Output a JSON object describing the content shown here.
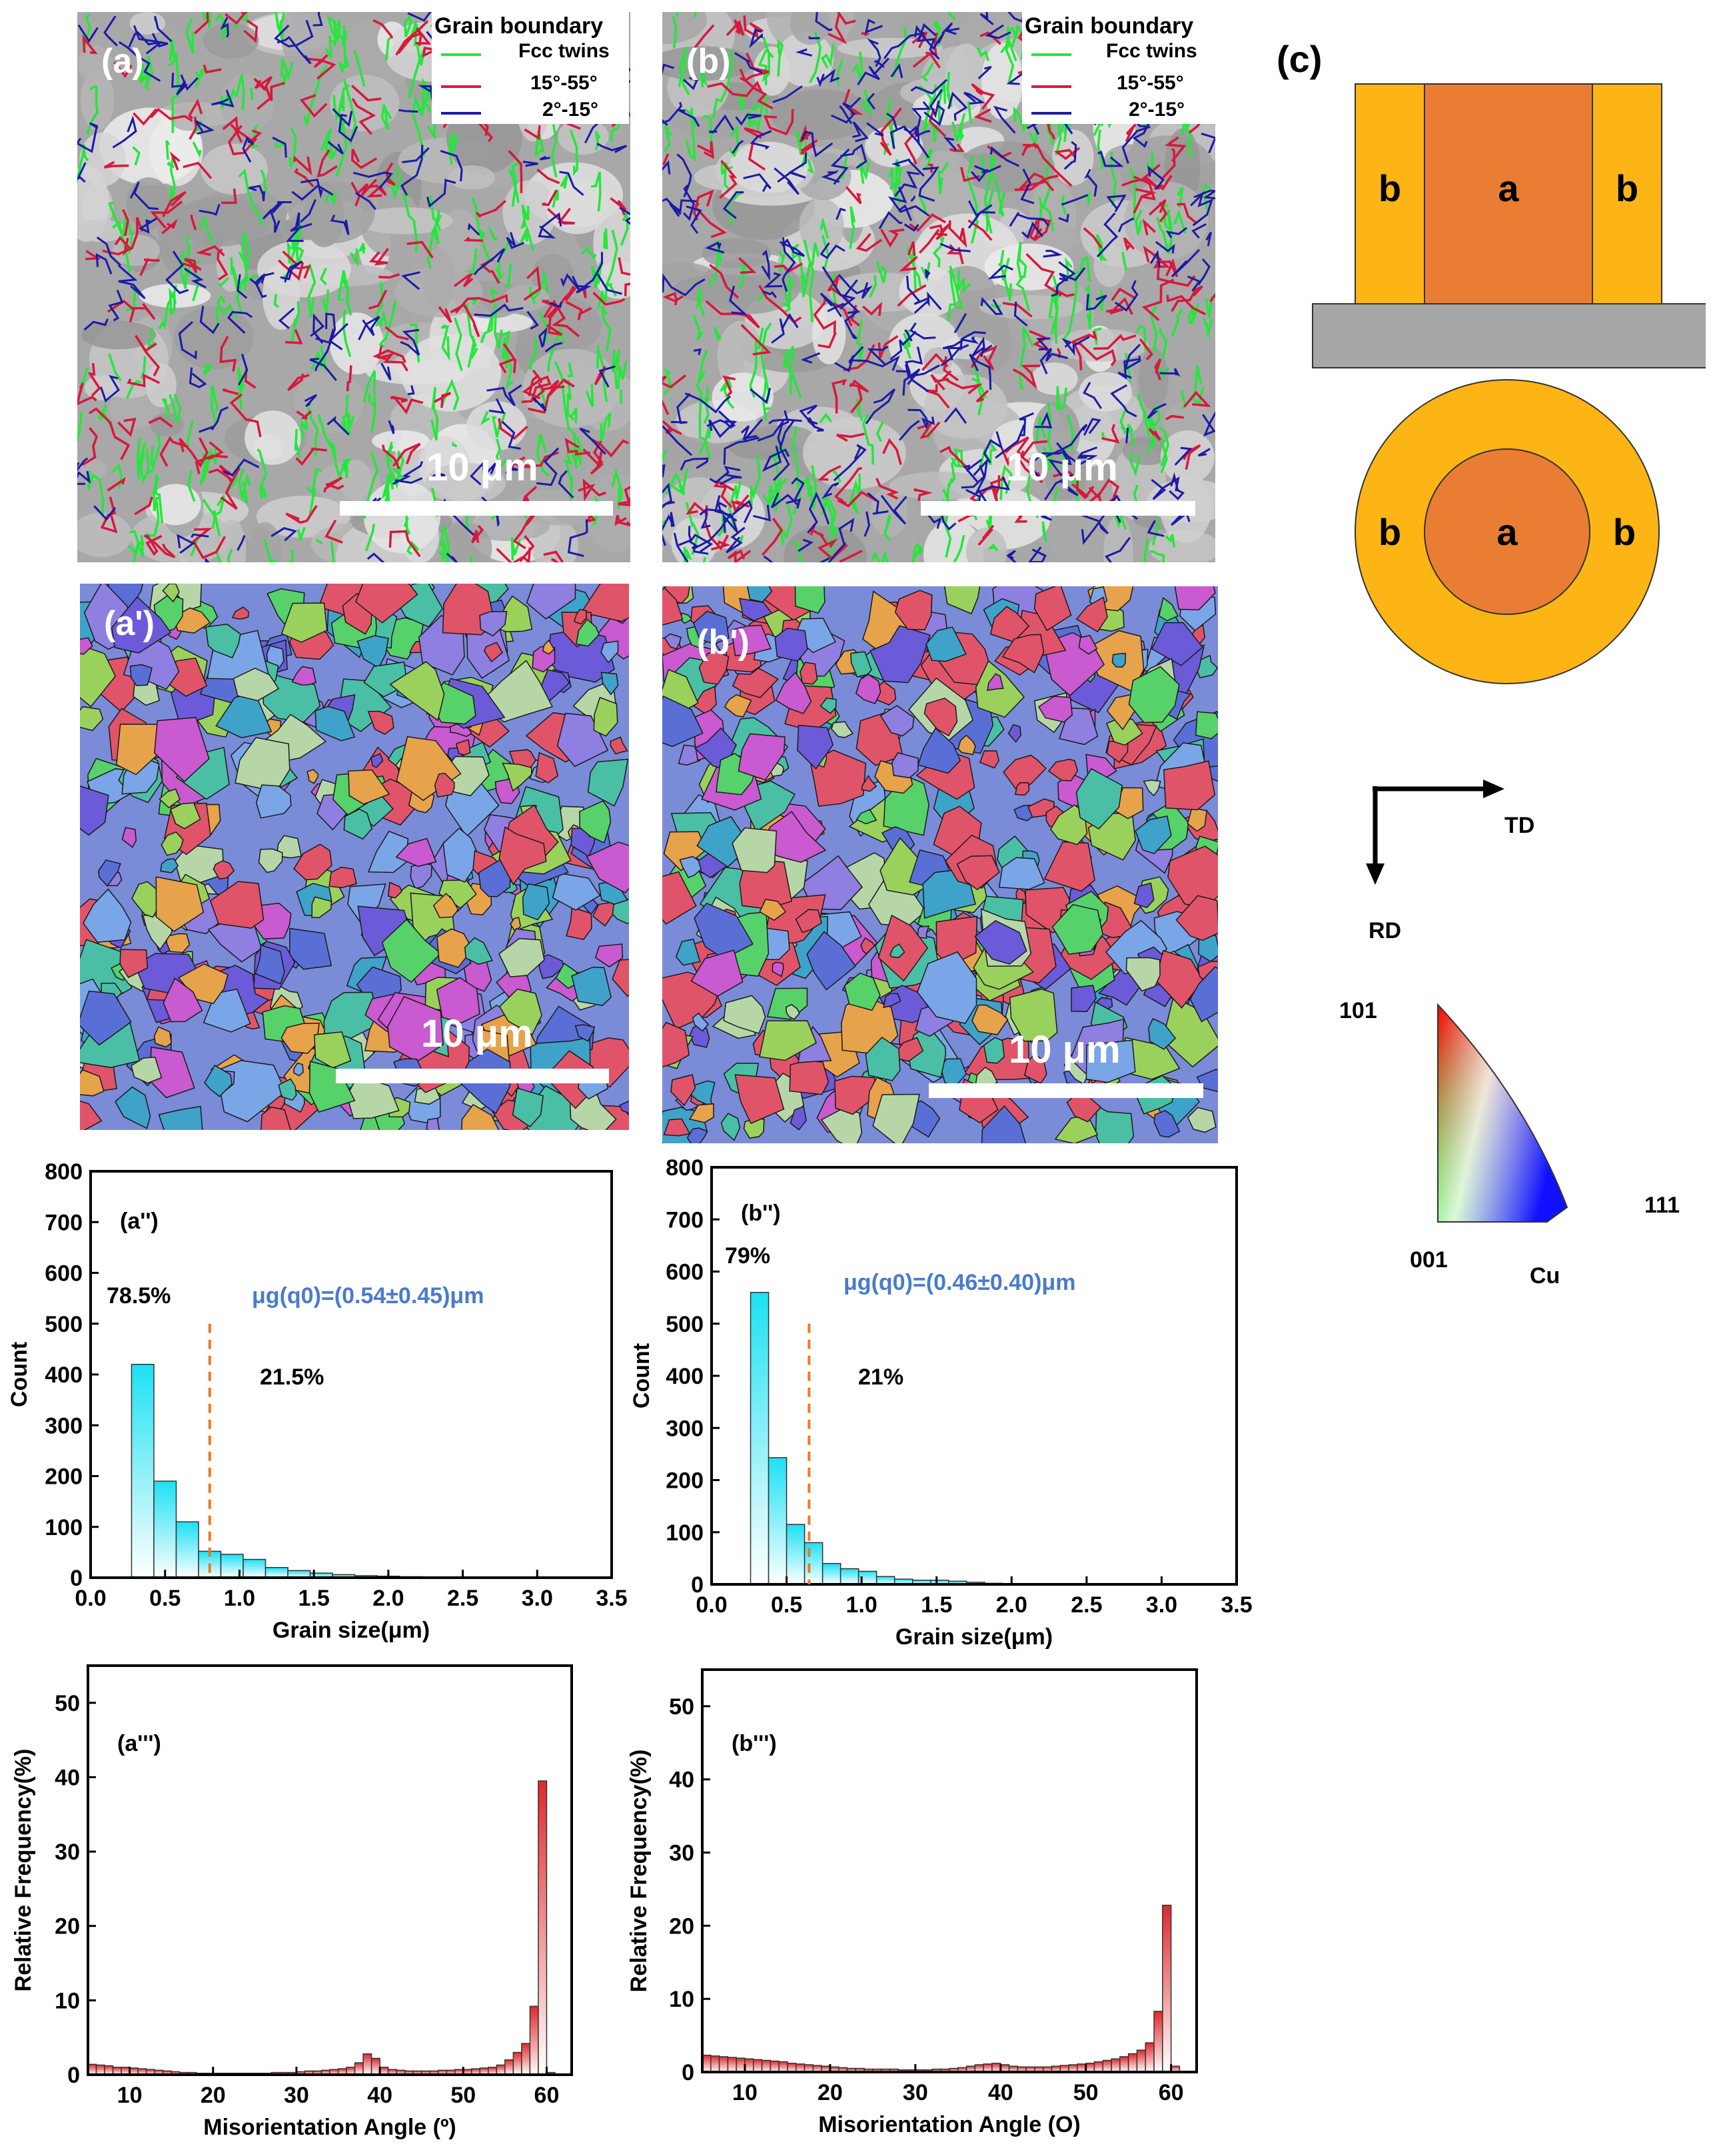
{
  "panels": {
    "a": "(a)",
    "b": "(b)",
    "c": "(c)",
    "a1": "(a')",
    "b1": "(b')",
    "a2": "(a'')",
    "b2": "(b'')",
    "a3": "(a''')",
    "b3": "(b''')"
  },
  "legend": {
    "title": "Grain boundary",
    "items": [
      {
        "label": "Fcc twins",
        "color": "#22e83a"
      },
      {
        "label": "15°-55°",
        "color": "#d8183c"
      },
      {
        "label": "2°-15°",
        "color": "#1b1aa8"
      }
    ]
  },
  "scale_bar": "10 μm",
  "schematic": {
    "center_label": "a",
    "edge_label": "b",
    "center_color": "#ea7d34",
    "edge_color": "#fdb515",
    "substrate_color": "#a6a6a6"
  },
  "axes": {
    "td": "TD",
    "rd": "RD"
  },
  "ipf_key": {
    "corner_101": "101",
    "corner_111": "111",
    "corner_001": "001",
    "material": "Cu"
  },
  "colors": {
    "mu_text": "#4a7bcb",
    "dashed_line": "#f07820",
    "cyan_top": "#1ce1f3",
    "red_top": "#e0282c"
  },
  "chart_data": [
    {
      "id": "a2",
      "type": "bar",
      "xlabel": "Grain size(μm)",
      "ylabel": "Count",
      "xlim": [
        0.0,
        3.5
      ],
      "ylim": [
        0,
        800
      ],
      "xticks": [
        "0.0",
        "0.5",
        "1.0",
        "1.5",
        "2.0",
        "2.5",
        "3.0",
        "3.5"
      ],
      "yticks": [
        "0",
        "100",
        "200",
        "300",
        "400",
        "500",
        "600",
        "700",
        "800"
      ],
      "bin_width": 0.15,
      "x": [
        0.35,
        0.5,
        0.65,
        0.8,
        0.95,
        1.1,
        1.25,
        1.4,
        1.55,
        1.7,
        1.85,
        2.0,
        2.15,
        2.3,
        2.45
      ],
      "values": [
        420,
        190,
        110,
        52,
        46,
        36,
        20,
        14,
        9,
        6,
        4,
        3,
        2,
        1,
        1
      ],
      "threshold": 0.8,
      "left_percent": "78.5%",
      "right_percent": "21.5%",
      "mu_text": "μg(q0)=(0.54±0.45)μm"
    },
    {
      "id": "b2",
      "type": "bar",
      "xlabel": "Grain size(μm)",
      "ylabel": "Count",
      "xlim": [
        0.0,
        3.5
      ],
      "ylim": [
        0,
        800
      ],
      "xticks": [
        "0.0",
        "0.5",
        "1.0",
        "1.5",
        "2.0",
        "2.5",
        "3.0",
        "3.5"
      ],
      "yticks": [
        "0",
        "100",
        "200",
        "300",
        "400",
        "500",
        "600",
        "700",
        "800"
      ],
      "bin_width": 0.12,
      "x": [
        0.32,
        0.44,
        0.56,
        0.68,
        0.8,
        0.92,
        1.04,
        1.16,
        1.28,
        1.4,
        1.52,
        1.64,
        1.76,
        1.88,
        2.0
      ],
      "values": [
        560,
        243,
        115,
        80,
        40,
        30,
        25,
        15,
        10,
        8,
        8,
        6,
        4,
        2,
        1
      ],
      "threshold": 0.65,
      "left_percent": "79%",
      "right_percent": "21%",
      "mu_text": "μg(q0)=(0.46±0.40)μm"
    },
    {
      "id": "a3",
      "type": "bar",
      "xlabel": "Misorientation Angle (º)",
      "ylabel": "Relative Frequency(%)",
      "xlim": [
        5,
        63
      ],
      "ylim": [
        0,
        55
      ],
      "xticks": [
        "10",
        "20",
        "30",
        "40",
        "50",
        "60"
      ],
      "yticks": [
        "0",
        "10",
        "20",
        "30",
        "40",
        "50"
      ],
      "bin_width": 1,
      "x": [
        5.5,
        6.5,
        7.5,
        8.5,
        9.5,
        10.5,
        11.5,
        12.5,
        13.5,
        14.5,
        15.5,
        16.5,
        17.5,
        18.5,
        19.5,
        20.5,
        21.5,
        22.5,
        23.5,
        24.5,
        25.5,
        26.5,
        27.5,
        28.5,
        29.5,
        30.5,
        31.5,
        32.5,
        33.5,
        34.5,
        35.5,
        36.5,
        37.5,
        38.5,
        39.5,
        40.5,
        41.5,
        42.5,
        43.5,
        44.5,
        45.5,
        46.5,
        47.5,
        48.5,
        49.5,
        50.5,
        51.5,
        52.5,
        53.5,
        54.5,
        55.5,
        56.5,
        57.5,
        58.5,
        59.5,
        60.5
      ],
      "values": [
        1.4,
        1.3,
        1.2,
        1.0,
        1.0,
        0.9,
        0.8,
        0.7,
        0.6,
        0.5,
        0.4,
        0.3,
        0.3,
        0.2,
        0.2,
        0.2,
        0.2,
        0.2,
        0.2,
        0.2,
        0.2,
        0.2,
        0.3,
        0.3,
        0.3,
        0.4,
        0.5,
        0.5,
        0.6,
        0.7,
        0.8,
        1.0,
        1.6,
        2.8,
        2.2,
        1.0,
        0.7,
        0.6,
        0.5,
        0.5,
        0.5,
        0.5,
        0.6,
        0.6,
        0.7,
        0.7,
        0.8,
        0.9,
        1.0,
        1.3,
        2.0,
        3.0,
        4.2,
        9.2,
        39.5,
        0.3
      ]
    },
    {
      "id": "b3",
      "type": "bar",
      "xlabel": "Misorientation Angle (O)",
      "ylabel": "Relative Frequency(%)",
      "xlim": [
        5,
        63
      ],
      "ylim": [
        0,
        55
      ],
      "xticks": [
        "10",
        "20",
        "30",
        "40",
        "50",
        "60"
      ],
      "yticks": [
        "0",
        "10",
        "20",
        "30",
        "40",
        "50"
      ],
      "bin_width": 1,
      "x": [
        5.5,
        6.5,
        7.5,
        8.5,
        9.5,
        10.5,
        11.5,
        12.5,
        13.5,
        14.5,
        15.5,
        16.5,
        17.5,
        18.5,
        19.5,
        20.5,
        21.5,
        22.5,
        23.5,
        24.5,
        25.5,
        26.5,
        27.5,
        28.5,
        29.5,
        30.5,
        31.5,
        32.5,
        33.5,
        34.5,
        35.5,
        36.5,
        37.5,
        38.5,
        39.5,
        40.5,
        41.5,
        42.5,
        43.5,
        44.5,
        45.5,
        46.5,
        47.5,
        48.5,
        49.5,
        50.5,
        51.5,
        52.5,
        53.5,
        54.5,
        55.5,
        56.5,
        57.5,
        58.5,
        59.5,
        60.5
      ],
      "values": [
        2.3,
        2.2,
        2.1,
        2.0,
        1.9,
        1.8,
        1.7,
        1.6,
        1.5,
        1.4,
        1.2,
        1.1,
        1.0,
        0.9,
        0.8,
        0.7,
        0.6,
        0.5,
        0.5,
        0.4,
        0.4,
        0.4,
        0.4,
        0.3,
        0.3,
        0.3,
        0.3,
        0.4,
        0.4,
        0.5,
        0.6,
        0.8,
        1.0,
        1.1,
        1.2,
        1.0,
        0.8,
        0.7,
        0.7,
        0.7,
        0.7,
        0.8,
        0.9,
        1.0,
        1.1,
        1.2,
        1.4,
        1.6,
        1.8,
        2.1,
        2.5,
        3.0,
        4.0,
        8.3,
        22.8,
        0.8
      ]
    }
  ]
}
